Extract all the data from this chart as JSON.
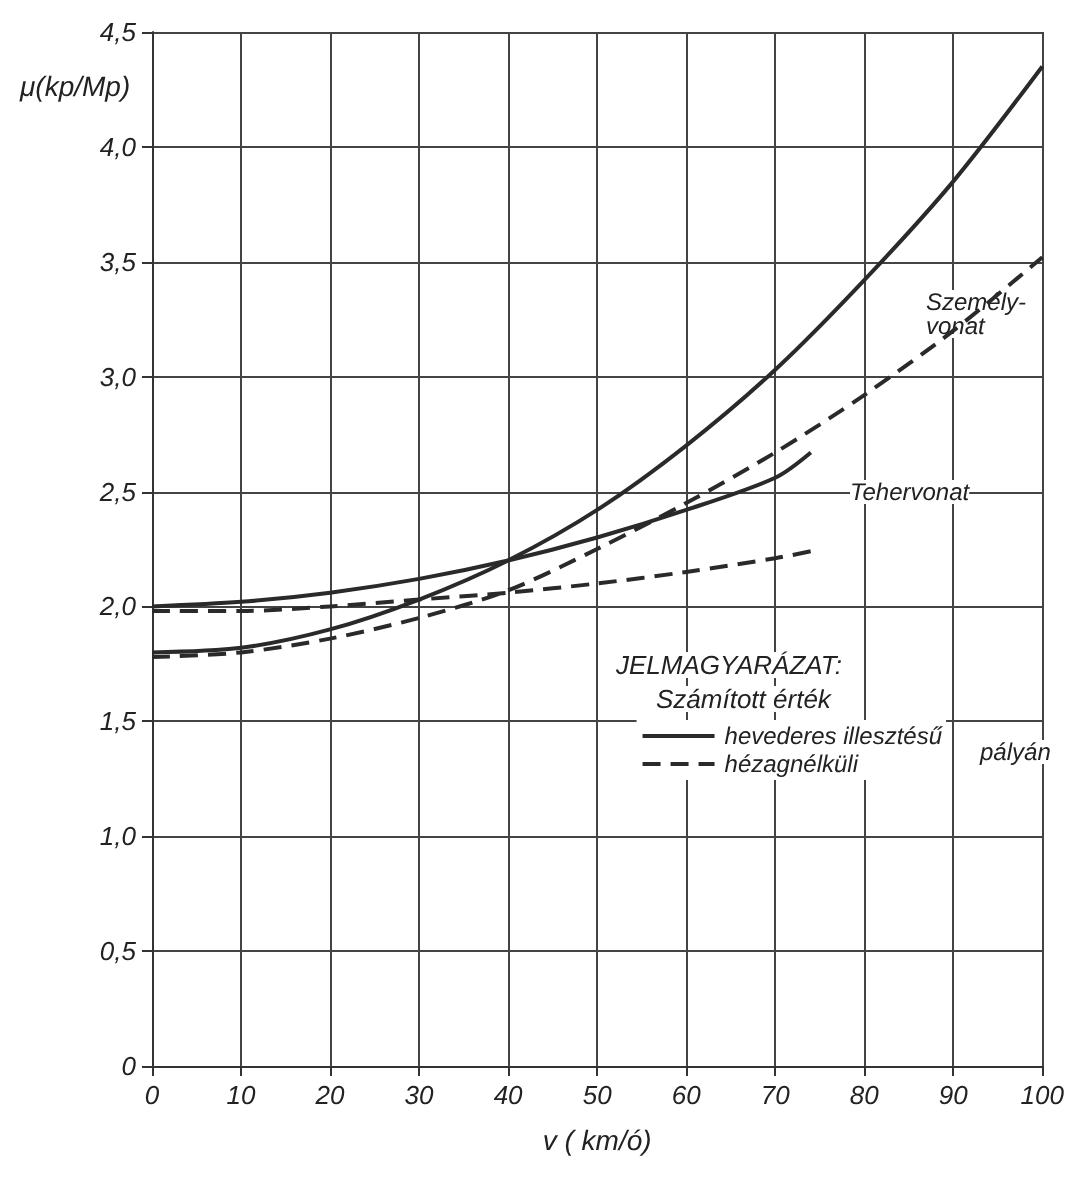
{
  "chart_data": {
    "type": "line",
    "xlabel": "v ( km/ó)",
    "ylabel": "μ(kp/Mp)",
    "legend_title": "JELMAGYARÁZAT:",
    "xlim": [
      0,
      100
    ],
    "xticks": [
      0,
      10,
      20,
      30,
      40,
      50,
      60,
      70,
      80,
      90,
      100
    ],
    "ylim": [
      0,
      4.5
    ],
    "yticks": [
      {
        "value": 0,
        "label": "0"
      },
      {
        "value": 0.5,
        "label": "0,5"
      },
      {
        "value": 1,
        "label": "1,0"
      },
      {
        "value": 1.5,
        "label": "1,5"
      },
      {
        "value": 2,
        "label": "2,0"
      },
      {
        "value": 2.5,
        "label": "2,5"
      },
      {
        "value": 3,
        "label": "3,0"
      },
      {
        "value": 3.5,
        "label": "3,5"
      },
      {
        "value": 4,
        "label": "4,0"
      },
      {
        "value": 4.5,
        "label": "4,5"
      }
    ],
    "grid": true,
    "legend": "bottom right",
    "marker": "none",
    "series": [
      {
        "name": "hevederes illesztésű",
        "color": "#2a2a2a",
        "line_style": "solid",
        "x": [
          0,
          10,
          20,
          30,
          40,
          50,
          60,
          70,
          80,
          90,
          100
        ],
        "values": [
          1.8,
          1.82,
          1.9,
          2.03,
          2.2,
          2.42,
          2.7,
          3.03,
          3.42,
          3.85,
          4.35
        ]
      },
      {
        "name": "hézagnélküli",
        "color": "#2a2a2a",
        "line_style": "dashed",
        "x": [
          0,
          10,
          20,
          30,
          40,
          50,
          60,
          70,
          80,
          90,
          100
        ],
        "values": [
          1.78,
          1.8,
          1.86,
          1.95,
          2.07,
          2.25,
          2.45,
          2.67,
          2.92,
          3.2,
          3.52
        ]
      },
      {
        "color": "#2a2a2a",
        "line_style": "solid",
        "x": [
          0,
          10,
          20,
          30,
          40,
          50,
          60,
          70,
          74
        ],
        "values": [
          2.0,
          2.02,
          2.06,
          2.12,
          2.2,
          2.3,
          2.42,
          2.56,
          2.67
        ]
      },
      {
        "color": "#2a2a2a",
        "line_style": "dashed",
        "x": [
          0,
          10,
          20,
          30,
          40,
          50,
          60,
          70,
          74
        ],
        "values": [
          1.98,
          1.98,
          2.0,
          2.03,
          2.06,
          2.1,
          2.15,
          2.21,
          2.24
        ]
      }
    ],
    "annotations": [
      "Személy-\nvonat",
      "Tehervonat",
      "Számított érték",
      "pályán"
    ]
  }
}
